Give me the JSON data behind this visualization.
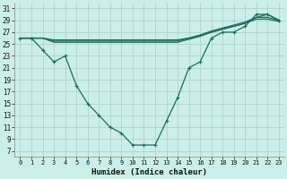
{
  "xlabel": "Humidex (Indice chaleur)",
  "bg_color": "#cceee8",
  "grid_color": "#aad4ce",
  "line_color": "#1a6b60",
  "xlim": [
    -0.5,
    23.5
  ],
  "ylim": [
    6,
    32
  ],
  "xticks": [
    0,
    1,
    2,
    3,
    4,
    5,
    6,
    7,
    8,
    9,
    10,
    11,
    12,
    13,
    14,
    15,
    16,
    17,
    18,
    19,
    20,
    21,
    22,
    23
  ],
  "yticks": [
    7,
    9,
    11,
    13,
    15,
    17,
    19,
    21,
    23,
    25,
    27,
    29,
    31
  ],
  "s_marker": [
    26,
    26,
    24,
    22,
    23,
    18,
    15,
    13,
    11,
    10,
    8,
    8,
    8,
    12,
    16,
    21,
    22,
    26,
    27,
    27,
    28,
    30,
    30,
    29
  ],
  "s_flat1": [
    26,
    26,
    26,
    25.5,
    25.5,
    25.5,
    25.5,
    25.5,
    25.5,
    25.5,
    25.5,
    25.5,
    25.5,
    25.5,
    25.5,
    26,
    26.5,
    27,
    27.5,
    28,
    28.5,
    29.5,
    30,
    29
  ],
  "s_flat2": [
    26,
    26,
    26,
    25.7,
    25.7,
    25.7,
    25.7,
    25.7,
    25.7,
    25.7,
    25.7,
    25.7,
    25.7,
    25.7,
    25.7,
    26,
    26.5,
    27.2,
    27.7,
    28.2,
    28.7,
    29.5,
    29.5,
    29
  ],
  "s_flat3": [
    26,
    26,
    26,
    25.3,
    25.3,
    25.3,
    25.3,
    25.3,
    25.3,
    25.3,
    25.3,
    25.3,
    25.3,
    25.3,
    25.3,
    25.8,
    26.3,
    27.0,
    27.5,
    28.0,
    28.5,
    29.2,
    29.2,
    28.8
  ]
}
